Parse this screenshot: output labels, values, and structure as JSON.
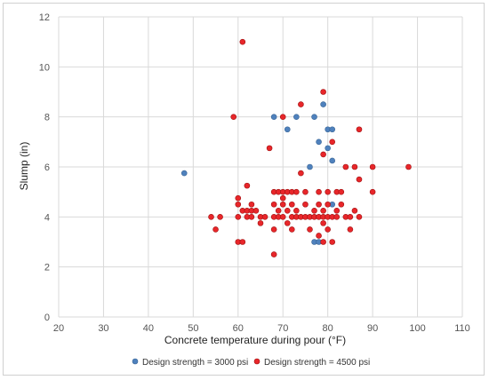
{
  "chart_data": {
    "type": "scatter",
    "title": "",
    "xlabel": "Concrete temperature during pour (°F)",
    "ylabel": "Slump (in)",
    "xlim": [
      20,
      110
    ],
    "ylim": [
      0,
      12
    ],
    "x_ticks": [
      20,
      30,
      40,
      50,
      60,
      70,
      80,
      90,
      100,
      110
    ],
    "y_ticks": [
      0,
      2,
      4,
      6,
      8,
      10,
      12
    ],
    "x_tick_labels": [
      "20",
      "30",
      "40",
      "50",
      "60",
      "70",
      "80",
      "90",
      "100",
      "110"
    ],
    "y_tick_labels": [
      "0",
      "2",
      "4",
      "6",
      "8",
      "10",
      "12"
    ],
    "grid": true,
    "legend_position": "bottom",
    "series": [
      {
        "name": "Design strength = 3000 psi",
        "color": "#4f81bd",
        "points": [
          [
            48,
            5.75
          ],
          [
            68,
            8
          ],
          [
            71,
            7.5
          ],
          [
            73,
            8
          ],
          [
            76,
            6
          ],
          [
            77,
            8
          ],
          [
            78,
            7
          ],
          [
            79,
            8.5
          ],
          [
            80,
            7.5
          ],
          [
            80,
            6.75
          ],
          [
            81,
            7.5
          ],
          [
            81,
            6.25
          ],
          [
            77,
            3
          ],
          [
            78,
            3
          ],
          [
            81,
            4.5
          ]
        ]
      },
      {
        "name": "Design strength = 4500 psi",
        "color": "#e8262a",
        "points": [
          [
            61,
            11
          ],
          [
            59,
            8
          ],
          [
            70,
            8
          ],
          [
            74,
            8.5
          ],
          [
            79,
            9
          ],
          [
            67,
            6.75
          ],
          [
            74,
            5.75
          ],
          [
            79,
            6.5
          ],
          [
            81,
            7
          ],
          [
            87,
            7.5
          ],
          [
            84,
            6
          ],
          [
            86,
            6
          ],
          [
            90,
            6
          ],
          [
            98,
            6
          ],
          [
            87,
            5.5
          ],
          [
            90,
            5
          ],
          [
            62,
            5.25
          ],
          [
            60,
            4.75
          ],
          [
            60,
            4.5
          ],
          [
            60,
            4
          ],
          [
            61,
            4.25
          ],
          [
            62,
            4.25
          ],
          [
            63,
            4.25
          ],
          [
            63,
            4.5
          ],
          [
            62,
            4
          ],
          [
            63,
            4
          ],
          [
            65,
            4
          ],
          [
            66,
            4
          ],
          [
            65,
            3.75
          ],
          [
            64,
            4.25
          ],
          [
            54,
            4
          ],
          [
            56,
            4
          ],
          [
            55,
            3.5
          ],
          [
            60,
            3
          ],
          [
            61,
            3
          ],
          [
            68,
            2.5
          ],
          [
            68,
            5
          ],
          [
            69,
            5
          ],
          [
            70,
            5
          ],
          [
            71,
            5
          ],
          [
            72,
            5
          ],
          [
            73,
            5
          ],
          [
            75,
            5
          ],
          [
            78,
            5
          ],
          [
            80,
            5
          ],
          [
            82,
            5
          ],
          [
            83,
            5
          ],
          [
            68,
            4.5
          ],
          [
            70,
            4.5
          ],
          [
            72,
            4.5
          ],
          [
            75,
            4.5
          ],
          [
            78,
            4.5
          ],
          [
            80,
            4.5
          ],
          [
            83,
            4.5
          ],
          [
            70,
            4.75
          ],
          [
            69,
            4.25
          ],
          [
            71,
            4.25
          ],
          [
            73,
            4.25
          ],
          [
            77,
            4.25
          ],
          [
            79,
            4.25
          ],
          [
            82,
            4.25
          ],
          [
            86,
            4.25
          ],
          [
            68,
            4
          ],
          [
            69,
            4
          ],
          [
            70,
            4
          ],
          [
            72,
            4
          ],
          [
            73,
            4
          ],
          [
            74,
            4
          ],
          [
            75,
            4
          ],
          [
            76,
            4
          ],
          [
            77,
            4
          ],
          [
            78,
            4
          ],
          [
            79,
            4
          ],
          [
            80,
            4
          ],
          [
            81,
            4
          ],
          [
            82,
            4
          ],
          [
            84,
            4
          ],
          [
            85,
            4
          ],
          [
            87,
            4
          ],
          [
            71,
            3.75
          ],
          [
            79,
            3.75
          ],
          [
            68,
            3.5
          ],
          [
            72,
            3.5
          ],
          [
            76,
            3.5
          ],
          [
            80,
            3.5
          ],
          [
            85,
            3.5
          ],
          [
            78,
            3.25
          ],
          [
            79,
            3
          ],
          [
            81,
            3
          ]
        ]
      }
    ]
  }
}
